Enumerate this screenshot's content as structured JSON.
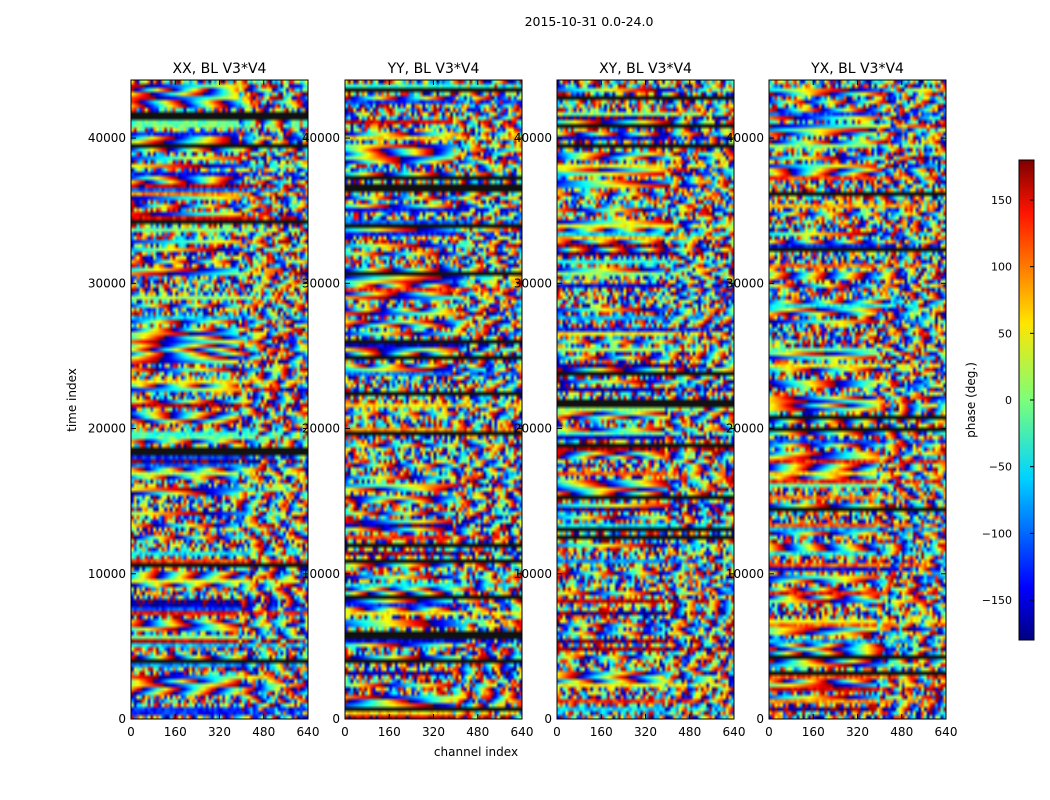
{
  "figure_title": "2015-10-31 0.0-24.0",
  "chart_data": {
    "type": "heatmap",
    "suptitle": "2015-10-31 0.0-24.0",
    "xlabel": "channel index",
    "ylabel": "time index",
    "x_ticks": [
      "0",
      "160",
      "320",
      "480",
      "640"
    ],
    "y_ticks": [
      "0",
      "10000",
      "20000",
      "30000",
      "40000"
    ],
    "xlim": [
      0,
      640
    ],
    "ylim": [
      0,
      44000
    ],
    "colormap": "jet",
    "panels": [
      {
        "title": "XX, BL V3*V4",
        "product": "XX",
        "baseline": "V3*V4"
      },
      {
        "title": "YY, BL V3*V4",
        "product": "YY",
        "baseline": "V3*V4"
      },
      {
        "title": "XY, BL V3*V4",
        "product": "XY",
        "baseline": "V3*V4"
      },
      {
        "title": "YX, BL V3*V4",
        "product": "YX",
        "baseline": "V3*V4"
      }
    ],
    "colorbar": {
      "label": "phase (deg.)",
      "range": [
        -180,
        180
      ],
      "ticks": [
        "150",
        "100",
        "50",
        "0",
        "−50",
        "−100",
        "−150"
      ],
      "tick_values": [
        150,
        100,
        50,
        0,
        -50,
        -100,
        -150
      ]
    }
  }
}
